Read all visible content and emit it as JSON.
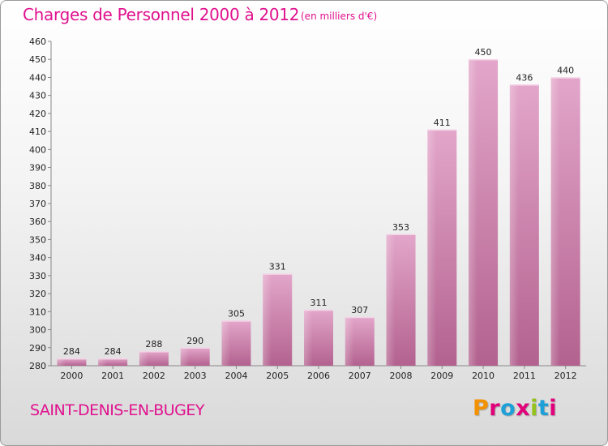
{
  "header": {
    "title": "Charges de Personnel 2000 à 2012",
    "subtitle": "(en milliers d'€)"
  },
  "footer": {
    "town": "SAINT-DENIS-EN-BUGEY",
    "logo": "Proxiti",
    "logo_colors": [
      "#f39200",
      "#e2007a",
      "#1d9fd8",
      "#e2007a",
      "#95c11f",
      "#1d9fd8",
      "#e2007a"
    ]
  },
  "colors": {
    "accent": "#e0118e",
    "bar": "#c76ba0"
  },
  "chart_data": {
    "type": "bar",
    "title": "Charges de Personnel 2000 à 2012",
    "subtitle": "(en milliers d'€)",
    "categories": [
      "2000",
      "2001",
      "2002",
      "2003",
      "2004",
      "2005",
      "2006",
      "2007",
      "2008",
      "2009",
      "2010",
      "2011",
      "2012"
    ],
    "values": [
      284,
      284,
      288,
      290,
      305,
      331,
      311,
      307,
      353,
      411,
      450,
      436,
      440
    ],
    "xlabel": "",
    "ylabel": "",
    "ylim": [
      280,
      460
    ],
    "yticks": [
      280,
      290,
      300,
      310,
      320,
      330,
      340,
      350,
      360,
      370,
      380,
      390,
      400,
      410,
      420,
      430,
      440,
      450,
      460
    ],
    "grid": false,
    "legend": "none"
  }
}
